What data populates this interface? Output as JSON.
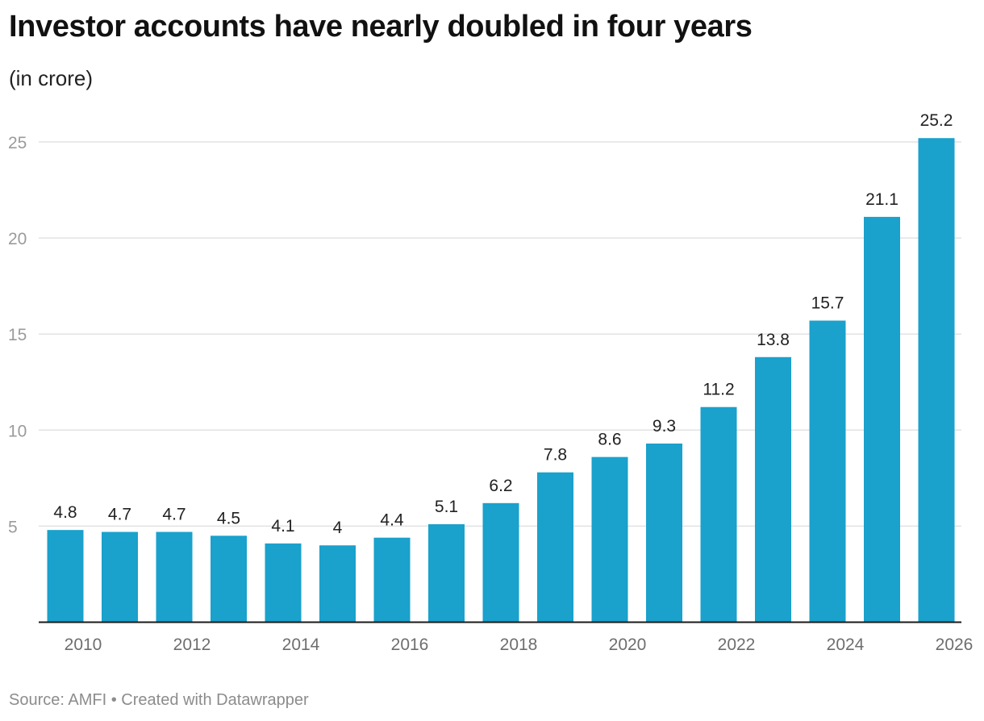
{
  "title": "Investor accounts have nearly doubled in four years",
  "subtitle": "(in crore)",
  "footer": {
    "source": "Source: AMFI",
    "separator": "•",
    "credit": "Created with Datawrapper"
  },
  "colors": {
    "bar": "#1aa1cc",
    "grid": "#e2e2e2",
    "axis": "#1a1a1a"
  },
  "chart_data": {
    "type": "bar",
    "categories": [
      "2010",
      "2011",
      "2012",
      "2013",
      "2014",
      "2015",
      "2016",
      "2017",
      "2018",
      "2019",
      "2020",
      "2021",
      "2022",
      "2023",
      "2024",
      "2025",
      "2026"
    ],
    "values": [
      4.8,
      4.7,
      4.7,
      4.5,
      4.1,
      4,
      4.4,
      5.1,
      6.2,
      7.8,
      8.6,
      9.3,
      11.2,
      13.8,
      15.7,
      21.1,
      25.2
    ],
    "value_labels": [
      "4.8",
      "4.7",
      "4.7",
      "4.5",
      "4.1",
      "4",
      "4.4",
      "5.1",
      "6.2",
      "7.8",
      "8.6",
      "9.3",
      "11.2",
      "13.8",
      "15.7",
      "21.1",
      "25.2"
    ],
    "x_tick_labels": [
      "2010",
      "2012",
      "2014",
      "2016",
      "2018",
      "2020",
      "2022",
      "2024",
      "2026"
    ],
    "y_ticks": [
      5,
      10,
      15,
      20,
      25
    ],
    "ylim": [
      0,
      25.2
    ],
    "grid": true,
    "xlabel": "",
    "ylabel": ""
  }
}
